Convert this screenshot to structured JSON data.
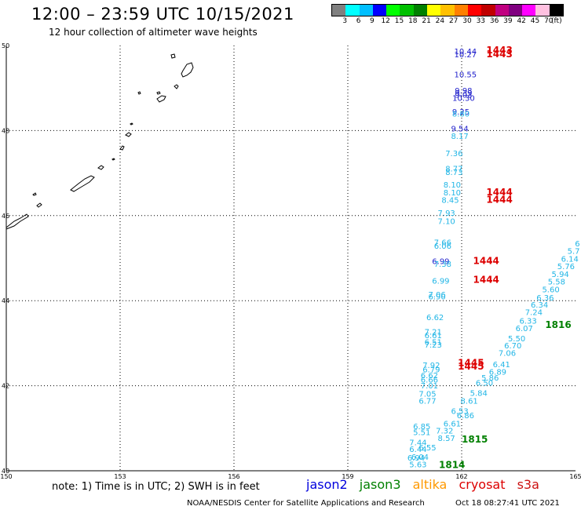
{
  "title": "12:00 – 23:59 UTC 10/15/2021",
  "subtitle": "12 hour collection of altimeter wave heights",
  "colorbar": {
    "unit": "(ft)",
    "colors": [
      "#808080",
      "#00ffff",
      "#00bfff",
      "#0000ff",
      "#00ff00",
      "#00c000",
      "#008000",
      "#ffff00",
      "#ffc000",
      "#ff8000",
      "#ff0000",
      "#c00000",
      "#c00080",
      "#800080",
      "#ff00ff",
      "#ffc0e0",
      "#000000"
    ],
    "labels": [
      "3",
      "6",
      "9",
      "12",
      "15",
      "18",
      "21",
      "24",
      "27",
      "30",
      "33",
      "36",
      "39",
      "42",
      "45",
      "70"
    ]
  },
  "map": {
    "lon_min": 150,
    "lon_max": 165,
    "lat_min": 40,
    "lat_max": 50,
    "lon_labels": [
      "150",
      "153",
      "156",
      "159",
      "162",
      "165"
    ],
    "lat_labels": [
      "50",
      "48",
      "46",
      "44",
      "42",
      "40"
    ]
  },
  "colors": {
    "jason2": "#0000dd",
    "jason3": "#008000",
    "altika": "#ff9900",
    "cryosat": "#dd0000",
    "s3a": "#cc1111",
    "track_blue": "#2020cc",
    "track_cyan": "#22b6e6",
    "time_red": "#dd0000",
    "time_green": "#008000"
  },
  "observations": [
    {
      "text": "10.44",
      "lon": 162.1,
      "lat": 49.8,
      "c": "track_blue"
    },
    {
      "text": "10.27",
      "lon": 162.1,
      "lat": 49.72,
      "c": "track_blue"
    },
    {
      "text": "10.55",
      "lon": 162.1,
      "lat": 49.25,
      "c": "track_blue"
    },
    {
      "text": "9.98",
      "lon": 162.05,
      "lat": 48.87,
      "c": "track_blue"
    },
    {
      "text": "9.39",
      "lon": 162.05,
      "lat": 48.82,
      "c": "track_blue"
    },
    {
      "text": "9.03",
      "lon": 162.05,
      "lat": 48.77,
      "c": "track_blue"
    },
    {
      "text": "10.30",
      "lon": 162.05,
      "lat": 48.7,
      "c": "track_blue"
    },
    {
      "text": "9.25",
      "lon": 161.98,
      "lat": 48.38,
      "c": "track_blue"
    },
    {
      "text": "8.80",
      "lon": 161.98,
      "lat": 48.33,
      "c": "track_cyan"
    },
    {
      "text": "9.54",
      "lon": 161.95,
      "lat": 47.98,
      "c": "track_blue"
    },
    {
      "text": "8.17",
      "lon": 161.95,
      "lat": 47.8,
      "c": "track_cyan"
    },
    {
      "text": "7.36",
      "lon": 161.8,
      "lat": 47.4,
      "c": "track_cyan"
    },
    {
      "text": "8.77",
      "lon": 161.8,
      "lat": 47.04,
      "c": "track_cyan"
    },
    {
      "text": "8.73",
      "lon": 161.8,
      "lat": 46.96,
      "c": "track_cyan"
    },
    {
      "text": "8.10",
      "lon": 161.75,
      "lat": 46.66,
      "c": "track_cyan"
    },
    {
      "text": "8.10",
      "lon": 161.75,
      "lat": 46.48,
      "c": "track_cyan"
    },
    {
      "text": "8.45",
      "lon": 161.7,
      "lat": 46.3,
      "c": "track_cyan"
    },
    {
      "text": "7.93",
      "lon": 161.6,
      "lat": 46.0,
      "c": "track_cyan"
    },
    {
      "text": "7.10",
      "lon": 161.6,
      "lat": 45.8,
      "c": "track_cyan"
    },
    {
      "text": "7.66",
      "lon": 161.5,
      "lat": 45.3,
      "c": "track_cyan"
    },
    {
      "text": "6.06",
      "lon": 161.5,
      "lat": 45.22,
      "c": "track_cyan"
    },
    {
      "text": "6.99",
      "lon": 161.45,
      "lat": 44.86,
      "c": "track_blue"
    },
    {
      "text": "7.38",
      "lon": 161.5,
      "lat": 44.8,
      "c": "track_cyan"
    },
    {
      "text": "6.99",
      "lon": 161.45,
      "lat": 44.4,
      "c": "track_cyan"
    },
    {
      "text": "7.06",
      "lon": 161.35,
      "lat": 44.08,
      "c": "track_cyan"
    },
    {
      "text": "6.90",
      "lon": 161.35,
      "lat": 44.03,
      "c": "track_cyan"
    },
    {
      "text": "6.62",
      "lon": 161.3,
      "lat": 43.54,
      "c": "track_cyan"
    },
    {
      "text": "7.21",
      "lon": 161.25,
      "lat": 43.2,
      "c": "track_cyan"
    },
    {
      "text": "6.61",
      "lon": 161.25,
      "lat": 43.12,
      "c": "track_cyan"
    },
    {
      "text": "6.51",
      "lon": 161.25,
      "lat": 42.96,
      "c": "track_cyan"
    },
    {
      "text": "7.23",
      "lon": 161.25,
      "lat": 42.9,
      "c": "track_cyan"
    },
    {
      "text": "7.92",
      "lon": 161.2,
      "lat": 42.42,
      "c": "track_cyan"
    },
    {
      "text": "6.79",
      "lon": 161.2,
      "lat": 42.32,
      "c": "track_cyan"
    },
    {
      "text": "6.62",
      "lon": 161.15,
      "lat": 42.18,
      "c": "track_cyan"
    },
    {
      "text": "6.66",
      "lon": 161.15,
      "lat": 42.08,
      "c": "track_cyan"
    },
    {
      "text": "7.01",
      "lon": 161.15,
      "lat": 41.94,
      "c": "track_cyan"
    },
    {
      "text": "7.05",
      "lon": 161.1,
      "lat": 41.74,
      "c": "track_cyan"
    },
    {
      "text": "6.77",
      "lon": 161.1,
      "lat": 41.58,
      "c": "track_cyan"
    },
    {
      "text": "6.85",
      "lon": 160.95,
      "lat": 40.98,
      "c": "track_cyan"
    },
    {
      "text": "5.51",
      "lon": 160.95,
      "lat": 40.84,
      "c": "track_cyan"
    },
    {
      "text": "7.32",
      "lon": 161.55,
      "lat": 40.88,
      "c": "track_cyan"
    },
    {
      "text": "6.61",
      "lon": 161.75,
      "lat": 41.04,
      "c": "track_cyan"
    },
    {
      "text": "8.57",
      "lon": 161.6,
      "lat": 40.7,
      "c": "track_cyan"
    },
    {
      "text": "7.44",
      "lon": 160.85,
      "lat": 40.6,
      "c": "track_cyan"
    },
    {
      "text": "6.55",
      "lon": 161.1,
      "lat": 40.48,
      "c": "track_cyan"
    },
    {
      "text": "6.44",
      "lon": 160.85,
      "lat": 40.44,
      "c": "track_cyan"
    },
    {
      "text": "6.04",
      "lon": 160.9,
      "lat": 40.26,
      "c": "track_cyan"
    },
    {
      "text": "6.94",
      "lon": 160.8,
      "lat": 40.24,
      "c": "track_cyan"
    },
    {
      "text": "5.63",
      "lon": 160.85,
      "lat": 40.08,
      "c": "track_cyan"
    },
    {
      "text": "6.86",
      "lon": 162.1,
      "lat": 41.24,
      "c": "track_cyan"
    },
    {
      "text": "6.53",
      "lon": 161.95,
      "lat": 41.34,
      "c": "track_cyan"
    },
    {
      "text": "8.61",
      "lon": 162.2,
      "lat": 41.58,
      "c": "track_cyan"
    },
    {
      "text": "5.84",
      "lon": 162.45,
      "lat": 41.76,
      "c": "track_cyan"
    },
    {
      "text": "6.50",
      "lon": 162.6,
      "lat": 42.0,
      "c": "track_cyan"
    },
    {
      "text": "5.86",
      "lon": 162.75,
      "lat": 42.12,
      "c": "track_cyan"
    },
    {
      "text": "6.89",
      "lon": 162.95,
      "lat": 42.26,
      "c": "track_cyan"
    },
    {
      "text": "6.41",
      "lon": 163.05,
      "lat": 42.44,
      "c": "track_cyan"
    },
    {
      "text": "7.06",
      "lon": 163.2,
      "lat": 42.7,
      "c": "track_cyan"
    },
    {
      "text": "6.70",
      "lon": 163.35,
      "lat": 42.88,
      "c": "track_cyan"
    },
    {
      "text": "5.50",
      "lon": 163.45,
      "lat": 43.04,
      "c": "track_cyan"
    },
    {
      "text": "6.07",
      "lon": 163.65,
      "lat": 43.28,
      "c": "track_cyan"
    },
    {
      "text": "6.33",
      "lon": 163.75,
      "lat": 43.46,
      "c": "track_cyan"
    },
    {
      "text": "7.24",
      "lon": 163.9,
      "lat": 43.66,
      "c": "track_cyan"
    },
    {
      "text": "6.34",
      "lon": 164.05,
      "lat": 43.84,
      "c": "track_cyan"
    },
    {
      "text": "6.36",
      "lon": 164.2,
      "lat": 44.0,
      "c": "track_cyan"
    },
    {
      "text": "5.60",
      "lon": 164.35,
      "lat": 44.2,
      "c": "track_cyan"
    },
    {
      "text": "5.58",
      "lon": 164.5,
      "lat": 44.38,
      "c": "track_cyan"
    },
    {
      "text": "5.94",
      "lon": 164.6,
      "lat": 44.56,
      "c": "track_cyan"
    },
    {
      "text": "5.76",
      "lon": 164.75,
      "lat": 44.74,
      "c": "track_cyan"
    },
    {
      "text": "6.14",
      "lon": 164.85,
      "lat": 44.92,
      "c": "track_cyan"
    },
    {
      "text": "5.7",
      "lon": 164.95,
      "lat": 45.1,
      "c": "track_cyan"
    },
    {
      "text": "6",
      "lon": 165.05,
      "lat": 45.28,
      "c": "track_cyan"
    }
  ],
  "time_labels": [
    {
      "text": "1443",
      "lon": 162.65,
      "lat": 49.82,
      "c": "time_red"
    },
    {
      "text": "1443",
      "lon": 162.65,
      "lat": 49.72,
      "c": "time_red"
    },
    {
      "text": "1444",
      "lon": 162.65,
      "lat": 46.48,
      "c": "time_red"
    },
    {
      "text": "1444",
      "lon": 162.65,
      "lat": 46.3,
      "c": "time_red"
    },
    {
      "text": "1444",
      "lon": 162.3,
      "lat": 44.86,
      "c": "time_red"
    },
    {
      "text": "1444",
      "lon": 162.3,
      "lat": 44.42,
      "c": "time_red"
    },
    {
      "text": "1445",
      "lon": 161.9,
      "lat": 42.46,
      "c": "time_red"
    },
    {
      "text": "1445",
      "lon": 161.9,
      "lat": 42.38,
      "c": "time_red"
    },
    {
      "text": "1816",
      "lon": 164.2,
      "lat": 43.36,
      "c": "time_green"
    },
    {
      "text": "1815",
      "lon": 162.0,
      "lat": 40.66,
      "c": "time_green"
    },
    {
      "text": "1814",
      "lon": 161.4,
      "lat": 40.06,
      "c": "time_green"
    }
  ],
  "note": "note: 1) Time is in UTC; 2) SWH is in feet",
  "satellites": {
    "jason2": "jason2",
    "jason3": "jason3",
    "altika": "altika",
    "cryosat": "cryosat",
    "s3a": "s3a"
  },
  "credit": "NOAA/NESDIS Center for Satellite Applications and Research",
  "timestamp": "Oct 18 08:27:41 UTC 2021"
}
